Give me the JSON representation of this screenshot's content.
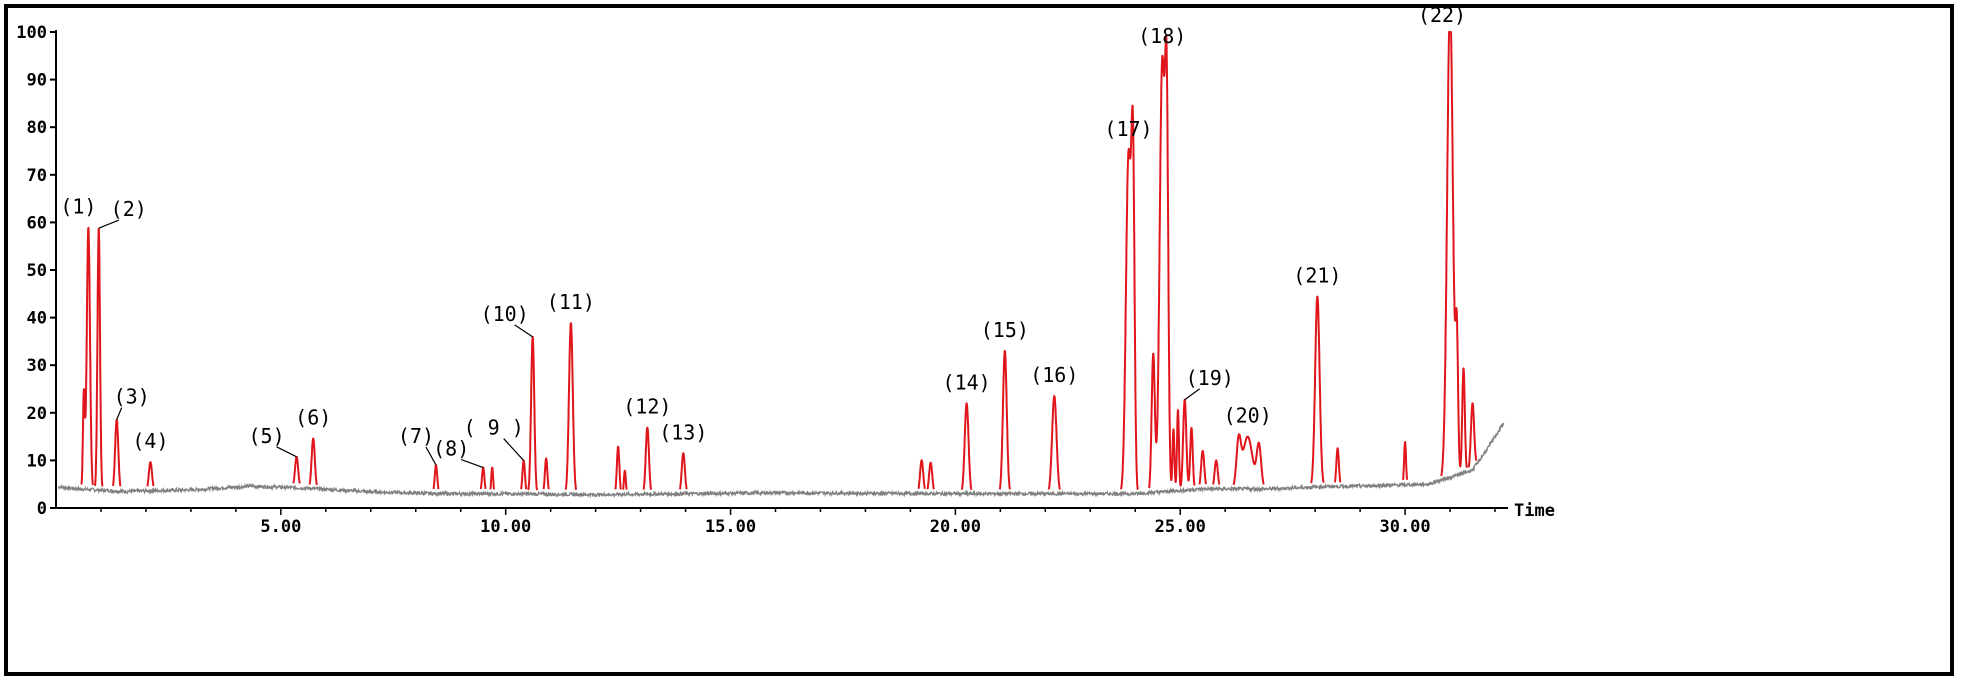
{
  "chart_data": {
    "type": "line",
    "title": "",
    "xlabel": "Time",
    "ylabel": "",
    "xlim": [
      0,
      32.2
    ],
    "ylim": [
      0,
      100
    ],
    "grid": false,
    "legend": "none",
    "x_ticks": [
      5,
      10,
      15,
      20,
      25,
      30
    ],
    "x_tick_labels": [
      "5.00",
      "10.00",
      "15.00",
      "20.00",
      "25.00",
      "30.00"
    ],
    "y_ticks": [
      0,
      10,
      20,
      30,
      40,
      50,
      60,
      70,
      80,
      90,
      100
    ],
    "y_tick_labels": [
      "0",
      "10",
      "20",
      "30",
      "40",
      "50",
      "60",
      "70",
      "80",
      "90",
      "100"
    ],
    "colors": {
      "baseline": "#808080",
      "peaks": "#e0161c",
      "axis": "#000000"
    },
    "baseline": [
      [
        0,
        4.5
      ],
      [
        0.5,
        4
      ],
      [
        1.5,
        3.5
      ],
      [
        3,
        3.8
      ],
      [
        4.3,
        4.6
      ],
      [
        5.5,
        4.2
      ],
      [
        7,
        3.4
      ],
      [
        8.5,
        3
      ],
      [
        10,
        3
      ],
      [
        12,
        2.8
      ],
      [
        14,
        3
      ],
      [
        16,
        3.2
      ],
      [
        18,
        3.1
      ],
      [
        20,
        3
      ],
      [
        22,
        3
      ],
      [
        24,
        3
      ],
      [
        25.5,
        4
      ],
      [
        27,
        4
      ],
      [
        28.2,
        4.5
      ],
      [
        29,
        4.6
      ],
      [
        30.5,
        5
      ],
      [
        31.2,
        7
      ],
      [
        31.5,
        8
      ],
      [
        31.8,
        12
      ],
      [
        32,
        15
      ],
      [
        32.2,
        18
      ]
    ],
    "peaks": [
      {
        "label": "(1)",
        "rt": 0.72,
        "height": 55,
        "width": 0.05
      },
      {
        "label": "(2)",
        "rt": 0.95,
        "height": 55,
        "width": 0.04
      },
      {
        "label": "(3)",
        "rt": 1.35,
        "height": 15,
        "width": 0.05
      },
      {
        "label": "(4)",
        "rt": 2.1,
        "height": 6,
        "width": 0.05
      },
      {
        "label": "(5)",
        "rt": 5.35,
        "height": 6.5,
        "width": 0.05
      },
      {
        "label": "(6)",
        "rt": 5.72,
        "height": 10.5,
        "width": 0.05
      },
      {
        "label": "(7)",
        "rt": 8.45,
        "height": 6,
        "width": 0.04
      },
      {
        "label": "(8)",
        "rt": 9.5,
        "height": 5.5,
        "width": 0.04
      },
      {
        "label": "( 9 )",
        "rt": 10.4,
        "height": 7,
        "width": 0.04
      },
      {
        "label": "(10)",
        "rt": 10.6,
        "height": 33,
        "width": 0.05
      },
      {
        "label": "(11)",
        "rt": 11.45,
        "height": 36,
        "width": 0.06
      },
      {
        "label": "(12)",
        "rt": 13.15,
        "height": 14,
        "width": 0.05
      },
      {
        "label": "(13)",
        "rt": 13.95,
        "height": 8.5,
        "width": 0.05
      },
      {
        "label": "(14)",
        "rt": 20.25,
        "height": 19,
        "width": 0.06
      },
      {
        "label": "(15)",
        "rt": 21.1,
        "height": 30,
        "width": 0.06
      },
      {
        "label": "(16)",
        "rt": 22.2,
        "height": 20.5,
        "width": 0.07
      },
      {
        "label": "(17)",
        "rt": 23.85,
        "height": 71,
        "width": 0.08
      },
      {
        "label": "(18)",
        "rt": 24.6,
        "height": 90,
        "width": 0.08
      },
      {
        "label": "(19)",
        "rt": 25.1,
        "height": 19,
        "width": 0.05
      },
      {
        "label": "(20)",
        "rt": 26.5,
        "height": 11,
        "width": 0.15
      },
      {
        "label": "(21)",
        "rt": 28.05,
        "height": 40,
        "width": 0.07
      },
      {
        "label": "(22)",
        "rt": 31.0,
        "height": 100,
        "width": 0.09
      }
    ],
    "minor_peaks": [
      {
        "rt": 0.62,
        "height": 20,
        "width": 0.03
      },
      {
        "rt": 10.9,
        "height": 7.5,
        "width": 0.04
      },
      {
        "rt": 12.5,
        "height": 10,
        "width": 0.04
      },
      {
        "rt": 12.65,
        "height": 5,
        "width": 0.03
      },
      {
        "rt": 9.7,
        "height": 5.5,
        "width": 0.03
      },
      {
        "rt": 19.25,
        "height": 7,
        "width": 0.05
      },
      {
        "rt": 19.45,
        "height": 6.5,
        "width": 0.05
      },
      {
        "rt": 23.95,
        "height": 64,
        "width": 0.05
      },
      {
        "rt": 24.4,
        "height": 29,
        "width": 0.05
      },
      {
        "rt": 24.7,
        "height": 73,
        "width": 0.05
      },
      {
        "rt": 24.85,
        "height": 13,
        "width": 0.03
      },
      {
        "rt": 24.95,
        "height": 17,
        "width": 0.03
      },
      {
        "rt": 25.25,
        "height": 13,
        "width": 0.04
      },
      {
        "rt": 25.5,
        "height": 8,
        "width": 0.05
      },
      {
        "rt": 25.8,
        "height": 6,
        "width": 0.05
      },
      {
        "rt": 26.3,
        "height": 9.5,
        "width": 0.07
      },
      {
        "rt": 26.75,
        "height": 9,
        "width": 0.07
      },
      {
        "rt": 28.5,
        "height": 8,
        "width": 0.04
      },
      {
        "rt": 30.0,
        "height": 9,
        "width": 0.03
      },
      {
        "rt": 31.15,
        "height": 28,
        "width": 0.04
      },
      {
        "rt": 31.3,
        "height": 22,
        "width": 0.04
      },
      {
        "rt": 31.5,
        "height": 14,
        "width": 0.05
      }
    ]
  }
}
